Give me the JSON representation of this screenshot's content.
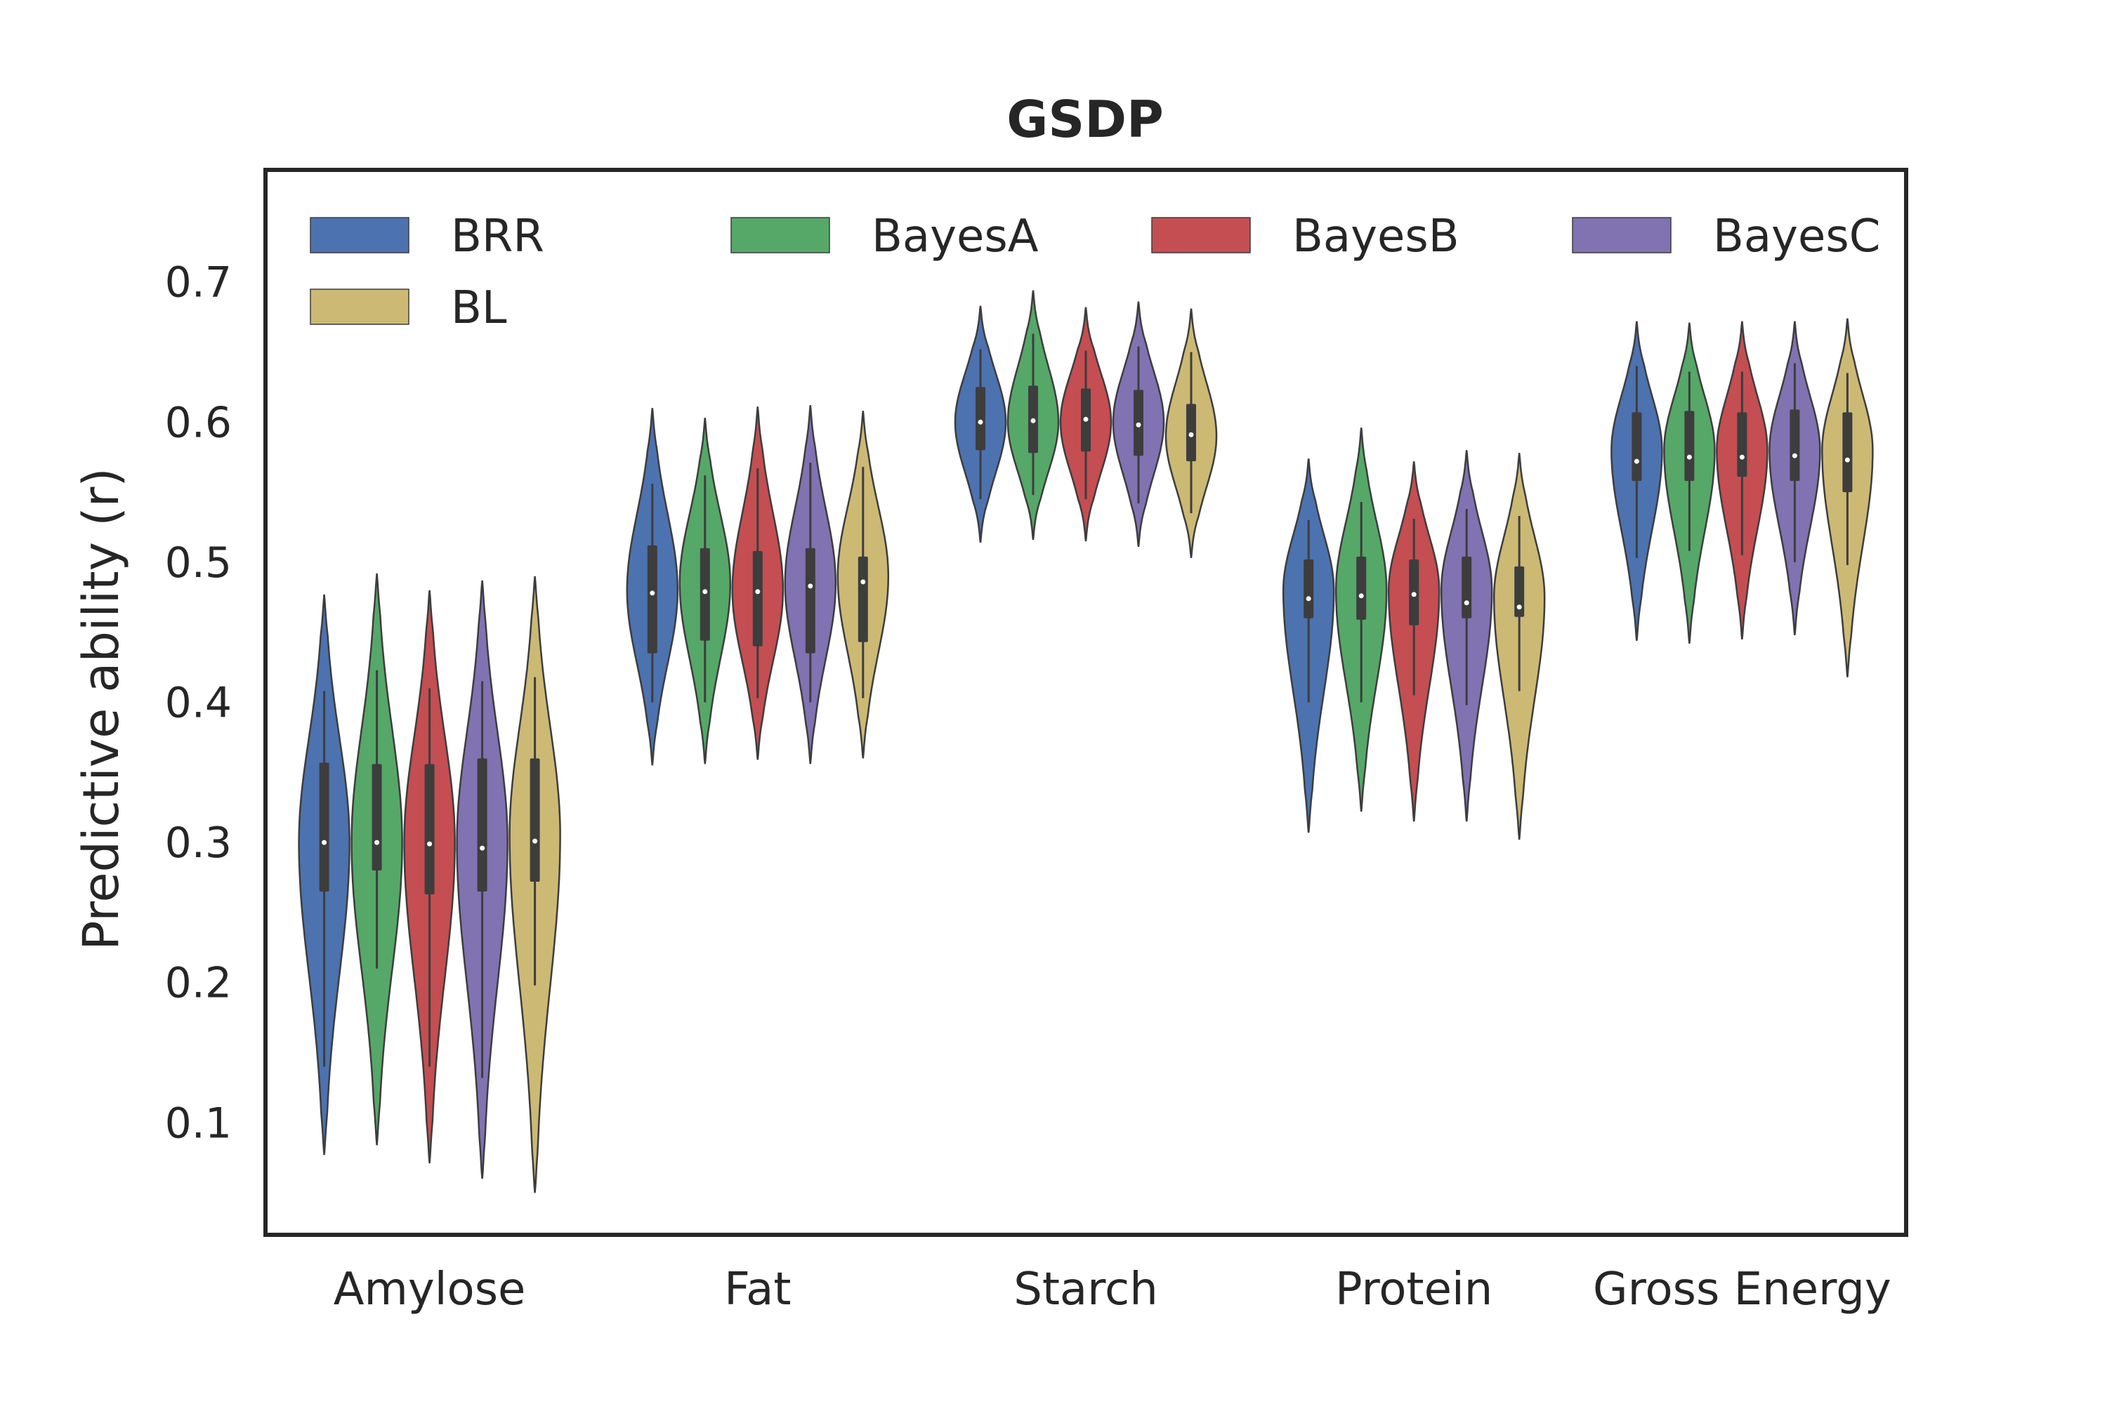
{
  "chart_data": {
    "type": "violin",
    "title": "GSDP",
    "xlabel": "",
    "ylabel": "Predictive ability (r)",
    "ylim": [
      0.02,
      0.78
    ],
    "yticks": [
      0.1,
      0.2,
      0.3,
      0.4,
      0.5,
      0.6,
      0.7
    ],
    "grid": false,
    "legend_position": "top-left",
    "categories": [
      "Amylose",
      "Fat",
      "Starch",
      "Protein",
      "Gross Energy"
    ],
    "series": [
      {
        "name": "BRR",
        "color": "#4c72b0",
        "values": [
          {
            "min": 0.077,
            "whisker_low": 0.14,
            "q1": 0.265,
            "median": 0.3,
            "q3": 0.357,
            "whisker_high": 0.408,
            "max": 0.477,
            "mode": 0.3
          },
          {
            "min": 0.355,
            "whisker_low": 0.4,
            "q1": 0.435,
            "median": 0.478,
            "q3": 0.512,
            "whisker_high": 0.556,
            "max": 0.61,
            "mode": 0.48
          },
          {
            "min": 0.514,
            "whisker_low": 0.545,
            "q1": 0.58,
            "median": 0.6,
            "q3": 0.625,
            "whisker_high": 0.652,
            "max": 0.683,
            "mode": 0.6
          },
          {
            "min": 0.307,
            "whisker_low": 0.4,
            "q1": 0.46,
            "median": 0.474,
            "q3": 0.502,
            "whisker_high": 0.53,
            "max": 0.574,
            "mode": 0.48
          },
          {
            "min": 0.444,
            "whisker_low": 0.503,
            "q1": 0.558,
            "median": 0.572,
            "q3": 0.607,
            "whisker_high": 0.64,
            "max": 0.672,
            "mode": 0.58
          }
        ]
      },
      {
        "name": "BayesA",
        "color": "#55a868",
        "values": [
          {
            "min": 0.084,
            "whisker_low": 0.21,
            "q1": 0.28,
            "median": 0.3,
            "q3": 0.356,
            "whisker_high": 0.423,
            "max": 0.492,
            "mode": 0.3
          },
          {
            "min": 0.356,
            "whisker_low": 0.4,
            "q1": 0.444,
            "median": 0.479,
            "q3": 0.51,
            "whisker_high": 0.562,
            "max": 0.603,
            "mode": 0.485
          },
          {
            "min": 0.516,
            "whisker_low": 0.548,
            "q1": 0.578,
            "median": 0.601,
            "q3": 0.626,
            "whisker_high": 0.663,
            "max": 0.694,
            "mode": 0.6
          },
          {
            "min": 0.322,
            "whisker_low": 0.4,
            "q1": 0.459,
            "median": 0.476,
            "q3": 0.504,
            "whisker_high": 0.543,
            "max": 0.596,
            "mode": 0.48
          },
          {
            "min": 0.442,
            "whisker_low": 0.508,
            "q1": 0.558,
            "median": 0.575,
            "q3": 0.608,
            "whisker_high": 0.636,
            "max": 0.671,
            "mode": 0.58
          }
        ]
      },
      {
        "name": "BayesB",
        "color": "#c44e52",
        "values": [
          {
            "min": 0.071,
            "whisker_low": 0.14,
            "q1": 0.263,
            "median": 0.299,
            "q3": 0.356,
            "whisker_high": 0.41,
            "max": 0.48,
            "mode": 0.3
          },
          {
            "min": 0.359,
            "whisker_low": 0.403,
            "q1": 0.44,
            "median": 0.479,
            "q3": 0.508,
            "whisker_high": 0.567,
            "max": 0.611,
            "mode": 0.48
          },
          {
            "min": 0.515,
            "whisker_low": 0.545,
            "q1": 0.579,
            "median": 0.602,
            "q3": 0.624,
            "whisker_high": 0.651,
            "max": 0.682,
            "mode": 0.6
          },
          {
            "min": 0.315,
            "whisker_low": 0.405,
            "q1": 0.455,
            "median": 0.477,
            "q3": 0.502,
            "whisker_high": 0.531,
            "max": 0.572,
            "mode": 0.48
          },
          {
            "min": 0.445,
            "whisker_low": 0.505,
            "q1": 0.561,
            "median": 0.575,
            "q3": 0.607,
            "whisker_high": 0.636,
            "max": 0.672,
            "mode": 0.58
          }
        ]
      },
      {
        "name": "BayesC",
        "color": "#8172b2",
        "values": [
          {
            "min": 0.06,
            "whisker_low": 0.132,
            "q1": 0.265,
            "median": 0.296,
            "q3": 0.36,
            "whisker_high": 0.415,
            "max": 0.487,
            "mode": 0.3
          },
          {
            "min": 0.356,
            "whisker_low": 0.4,
            "q1": 0.435,
            "median": 0.483,
            "q3": 0.51,
            "whisker_high": 0.571,
            "max": 0.612,
            "mode": 0.485
          },
          {
            "min": 0.511,
            "whisker_low": 0.542,
            "q1": 0.576,
            "median": 0.598,
            "q3": 0.623,
            "whisker_high": 0.654,
            "max": 0.686,
            "mode": 0.6
          },
          {
            "min": 0.315,
            "whisker_low": 0.398,
            "q1": 0.46,
            "median": 0.471,
            "q3": 0.504,
            "whisker_high": 0.538,
            "max": 0.58,
            "mode": 0.48
          },
          {
            "min": 0.448,
            "whisker_low": 0.5,
            "q1": 0.558,
            "median": 0.576,
            "q3": 0.609,
            "whisker_high": 0.642,
            "max": 0.672,
            "mode": 0.58
          }
        ]
      },
      {
        "name": "BL",
        "color": "#ccb974",
        "values": [
          {
            "min": 0.05,
            "whisker_low": 0.198,
            "q1": 0.272,
            "median": 0.301,
            "q3": 0.36,
            "whisker_high": 0.418,
            "max": 0.49,
            "mode": 0.305
          },
          {
            "min": 0.36,
            "whisker_low": 0.403,
            "q1": 0.443,
            "median": 0.486,
            "q3": 0.504,
            "whisker_high": 0.568,
            "max": 0.608,
            "mode": 0.49
          },
          {
            "min": 0.503,
            "whisker_low": 0.535,
            "q1": 0.572,
            "median": 0.591,
            "q3": 0.613,
            "whisker_high": 0.65,
            "max": 0.681,
            "mode": 0.59
          },
          {
            "min": 0.302,
            "whisker_low": 0.408,
            "q1": 0.461,
            "median": 0.468,
            "q3": 0.497,
            "whisker_high": 0.533,
            "max": 0.578,
            "mode": 0.475
          },
          {
            "min": 0.418,
            "whisker_low": 0.498,
            "q1": 0.55,
            "median": 0.573,
            "q3": 0.607,
            "whisker_high": 0.635,
            "max": 0.674,
            "mode": 0.58
          }
        ]
      }
    ]
  }
}
